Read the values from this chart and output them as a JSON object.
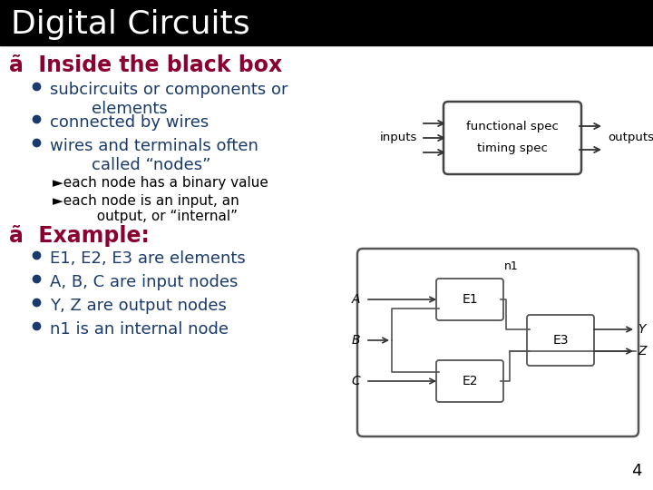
{
  "title": "Digital Circuits",
  "title_bg": "#000000",
  "title_color": "#ffffff",
  "title_fontsize": 26,
  "heading1": "ã  Inside the black box",
  "heading1_color": "#8b0033",
  "heading1_fontsize": 17,
  "bullet1_items": [
    "subcircuits or components or\n        elements",
    "connected by wires",
    "wires and terminals often\n        called “nodes”"
  ],
  "sub_bullets": [
    "each node has a binary value",
    "each node is an input, an\n          output, or “internal”"
  ],
  "heading2": "ã  Example:",
  "heading2_color": "#8b0033",
  "heading2_fontsize": 17,
  "bullet2_items": [
    "E1, E2, E3 are elements",
    "A, B, C are input nodes",
    "Y, Z are output nodes",
    "n1 is an internal node"
  ],
  "bullet_color": "#1a3a6b",
  "text_color": "#1a3a6b",
  "sub_text_color": "#000000",
  "bullet_fontsize": 13,
  "sub_fontsize": 11,
  "page_num": "4",
  "bg_color": "#ffffff",
  "diagram_text_color": "#000000",
  "diagram_edge_color": "#555555",
  "arrow_color": "#333333"
}
